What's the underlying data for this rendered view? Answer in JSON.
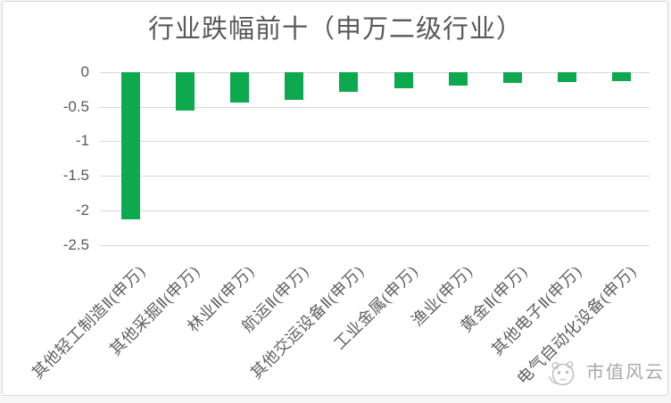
{
  "chart_data": {
    "type": "bar",
    "title": "行业跌幅前十（申万二级行业）",
    "categories": [
      "其他轻工制造Ⅱ(申万)",
      "其他采掘Ⅱ(申万)",
      "林业Ⅱ(申万)",
      "航运Ⅱ(申万)",
      "其他交运设备Ⅱ(申万)",
      "工业金属(申万)",
      "渔业(申万)",
      "黄金Ⅱ(申万)",
      "其他电子Ⅱ(申万)",
      "电气自动化设备(申万)"
    ],
    "values": [
      -2.13,
      -0.56,
      -0.44,
      -0.4,
      -0.28,
      -0.23,
      -0.19,
      -0.16,
      -0.14,
      -0.13
    ],
    "xlabel": "",
    "ylabel": "",
    "ylim": [
      -2.5,
      0
    ],
    "yticks": [
      0,
      -0.5,
      -1,
      -1.5,
      -2,
      -2.5
    ],
    "grid": true,
    "legend_position": "none",
    "bar_color": "#0CA94F",
    "grid_color": "#d8d8d8",
    "text_color": "#595959"
  },
  "watermark": {
    "text": "市值风云",
    "icon": "panda-logo-icon"
  }
}
